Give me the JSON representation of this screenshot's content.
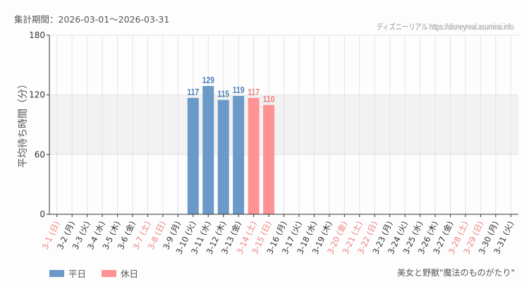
{
  "header": {
    "period_label": "集計期間：2026-03-01～2026-03-31",
    "site_credit": "ディズニーリアル https://disneyreal.asumirai.info"
  },
  "footer": {
    "attraction_name": "美女と野獣\"魔法のものがたり\""
  },
  "legend": [
    {
      "label": "平日",
      "color": "#6b9ac8"
    },
    {
      "label": "休日",
      "color": "#ff9393"
    }
  ],
  "colors": {
    "weekday": "#6b9ac8",
    "holiday": "#ff9393",
    "weekday_label": "#4f80b8",
    "holiday_label": "#f08080",
    "axis_text": "#333333",
    "band": "#f2f2f2",
    "grid": "#e4e4e4"
  },
  "chart_data": {
    "type": "bar",
    "title": "",
    "xlabel": "",
    "ylabel": "平均待ち時間（分）",
    "ylim": [
      0,
      180
    ],
    "yticks": [
      0,
      60,
      120,
      180
    ],
    "grid": true,
    "highlight_band": [
      60,
      120
    ],
    "legend_position": "bottom-left",
    "categories": [
      "3-1 (日)",
      "3-2 (月)",
      "3-3 (火)",
      "3-4 (水)",
      "3-5 (木)",
      "3-6 (金)",
      "3-7 (土)",
      "3-8 (日)",
      "3-9 (月)",
      "3-10 (火)",
      "3-11 (水)",
      "3-12 (木)",
      "3-13 (金)",
      "3-14 (土)",
      "3-15 (日)",
      "3-16 (月)",
      "3-17 (火)",
      "3-18 (水)",
      "3-19 (木)",
      "3-20 (金)",
      "3-21 (土)",
      "3-22 (日)",
      "3-23 (月)",
      "3-24 (火)",
      "3-25 (水)",
      "3-26 (木)",
      "3-27 (金)",
      "3-28 (土)",
      "3-29 (日)",
      "3-30 (月)",
      "3-31 (火)"
    ],
    "holiday_flags": [
      true,
      false,
      false,
      false,
      false,
      false,
      true,
      true,
      false,
      false,
      false,
      false,
      false,
      true,
      true,
      false,
      false,
      false,
      false,
      true,
      true,
      true,
      false,
      false,
      false,
      false,
      false,
      true,
      true,
      false,
      false
    ],
    "series": [
      {
        "name": "平日",
        "values": [
          null,
          null,
          null,
          null,
          null,
          null,
          null,
          null,
          null,
          117,
          129,
          115,
          119,
          null,
          null,
          null,
          null,
          null,
          null,
          null,
          null,
          null,
          null,
          null,
          null,
          null,
          null,
          null,
          null,
          null,
          null
        ]
      },
      {
        "name": "休日",
        "values": [
          null,
          null,
          null,
          null,
          null,
          null,
          null,
          null,
          null,
          null,
          null,
          null,
          null,
          117,
          110,
          null,
          null,
          null,
          null,
          null,
          null,
          null,
          null,
          null,
          null,
          null,
          null,
          null,
          null,
          null,
          null
        ]
      }
    ]
  }
}
